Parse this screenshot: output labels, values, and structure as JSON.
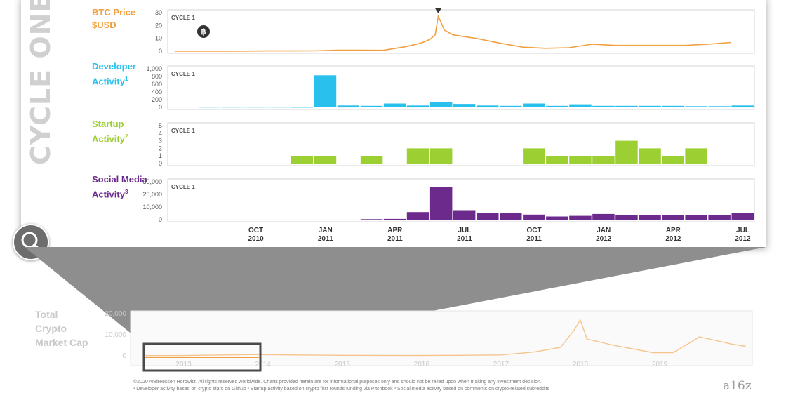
{
  "side_title": "CYCLE ONE",
  "row_labels": {
    "btc": "BTC Price $USD",
    "dev": "Developer Activity",
    "dev_sup": "1",
    "startup": "Startup Activity",
    "startup_sup": "2",
    "social": "Social Media Activity",
    "social_sup": "3"
  },
  "cycle_label": "CYCLE 1",
  "bitcoin_icon": "bitcoin-logo-icon",
  "peak_marker_icon": "down-triangle-icon",
  "magnifier_icon": "magnifier-icon",
  "colors": {
    "btc": "#f0a040",
    "dev": "#29c0ee",
    "startup": "#9ccf32",
    "social": "#6b2a8c",
    "grey": "#bdbdbd"
  },
  "x_axis_ticks": [
    {
      "month": "OCT",
      "year": "2010"
    },
    {
      "month": "JAN",
      "year": "2011"
    },
    {
      "month": "APR",
      "year": "2011"
    },
    {
      "month": "JUL",
      "year": "2011"
    },
    {
      "month": "OCT",
      "year": "2011"
    },
    {
      "month": "JAN",
      "year": "2012"
    },
    {
      "month": "APR",
      "year": "2012"
    },
    {
      "month": "JUL",
      "year": "2012"
    }
  ],
  "bottom_label": "Total Crypto Market Cap",
  "bottom_years": [
    "2013",
    "2014",
    "2015",
    "2016",
    "2017",
    "2018",
    "2019"
  ],
  "footer_line1": "©2020 Andreessen Horowitz. All rights reserved worldwide.     Charts provided herein are for informational purposes only and should not be relied upon when making any investment decision.",
  "footer_line2": "¹ Developer activity based on crypto stars on Github       ² Startup activity based on crypto first rounds funding via Pitchbook       ³ Social media activity based on comments on crypto-related subreddits",
  "brand": "a16z",
  "chart_data": [
    {
      "type": "line",
      "name": "btc",
      "yticks": [
        "0",
        "10",
        "20",
        "30"
      ],
      "ylim": [
        0,
        33
      ],
      "x": [
        "2010-07",
        "2010-08",
        "2010-09",
        "2010-10",
        "2010-11",
        "2010-12",
        "2011-01",
        "2011-02",
        "2011-03",
        "2011-04",
        "2011-05",
        "2011-05-20",
        "2011-06-01",
        "2011-06-08",
        "2011-06-12",
        "2011-06-20",
        "2011-07",
        "2011-08",
        "2011-09",
        "2011-10",
        "2011-11",
        "2011-12",
        "2012-01",
        "2012-02",
        "2012-03",
        "2012-04",
        "2012-05",
        "2012-06",
        "2012-07"
      ],
      "values": [
        0.06,
        0.07,
        0.06,
        0.1,
        0.25,
        0.25,
        0.3,
        0.9,
        0.9,
        0.8,
        4,
        7,
        10,
        14,
        30,
        18,
        14,
        11,
        7,
        3.5,
        2.5,
        3,
        6,
        5,
        5,
        5,
        5,
        6,
        7.5
      ]
    },
    {
      "type": "bar",
      "name": "dev",
      "yticks": [
        "0",
        "200",
        "400",
        "600",
        "800",
        "1,000"
      ],
      "ylim": [
        0,
        1000
      ],
      "categories": [
        "2010-08",
        "2010-09",
        "2010-10",
        "2010-11",
        "2010-12",
        "2011-01",
        "2011-02",
        "2011-03",
        "2011-04",
        "2011-05",
        "2011-06",
        "2011-07",
        "2011-08",
        "2011-09",
        "2011-10",
        "2011-11",
        "2011-12",
        "2012-01",
        "2012-02",
        "2012-03",
        "2012-04",
        "2012-05",
        "2012-06",
        "2012-07"
      ],
      "values": [
        15,
        15,
        15,
        15,
        10,
        830,
        50,
        40,
        100,
        50,
        130,
        90,
        50,
        40,
        100,
        40,
        80,
        40,
        40,
        40,
        40,
        30,
        30,
        50
      ]
    },
    {
      "type": "bar",
      "name": "startup",
      "yticks": [
        "0",
        "1",
        "2",
        "3",
        "4",
        "5"
      ],
      "ylim": [
        0,
        5
      ],
      "categories": [
        "2010-08",
        "2010-09",
        "2010-10",
        "2010-11",
        "2010-12",
        "2011-01",
        "2011-02",
        "2011-03",
        "2011-04",
        "2011-05",
        "2011-06",
        "2011-07",
        "2011-08",
        "2011-09",
        "2011-10",
        "2011-11",
        "2011-12",
        "2012-01",
        "2012-02",
        "2012-03",
        "2012-04",
        "2012-05",
        "2012-06",
        "2012-07"
      ],
      "values": [
        0,
        0,
        0,
        0,
        1,
        1,
        0,
        1,
        0,
        2,
        2,
        0,
        0,
        0,
        2,
        1,
        1,
        1,
        3,
        2,
        1,
        2,
        0,
        0
      ]
    },
    {
      "type": "bar",
      "name": "social",
      "yticks": [
        "0",
        "10,000",
        "20,000",
        "30,000"
      ],
      "ylim": [
        0,
        30000
      ],
      "categories": [
        "2010-08",
        "2010-09",
        "2010-10",
        "2010-11",
        "2010-12",
        "2011-01",
        "2011-02",
        "2011-03",
        "2011-04",
        "2011-05",
        "2011-06",
        "2011-07",
        "2011-08",
        "2011-09",
        "2011-10",
        "2011-11",
        "2011-12",
        "2012-01",
        "2012-02",
        "2012-03",
        "2012-04",
        "2012-05",
        "2012-06",
        "2012-07"
      ],
      "values": [
        0,
        0,
        0,
        0,
        0,
        0,
        0,
        400,
        600,
        6000,
        26000,
        7500,
        5500,
        5000,
        4000,
        2500,
        3000,
        4500,
        3500,
        3500,
        3500,
        3500,
        3500,
        5000
      ]
    },
    {
      "type": "area",
      "name": "market_cap",
      "yticks": [
        "0",
        "10,000",
        "20,000"
      ],
      "ylim": [
        0,
        20000
      ],
      "x": [
        "2012-07",
        "2013-01",
        "2013-12",
        "2014-06",
        "2015-01",
        "2015-06",
        "2016-01",
        "2016-06",
        "2017-01",
        "2017-06",
        "2017-10",
        "2017-12",
        "2018-01",
        "2018-02",
        "2018-06",
        "2018-12",
        "2019-03",
        "2019-06",
        "2019-07",
        "2019-12",
        "2020-02"
      ],
      "values": [
        100,
        150,
        600,
        400,
        250,
        200,
        180,
        250,
        400,
        1800,
        4000,
        12000,
        17000,
        8000,
        5000,
        1500,
        1500,
        7000,
        9000,
        5500,
        4500
      ]
    }
  ]
}
